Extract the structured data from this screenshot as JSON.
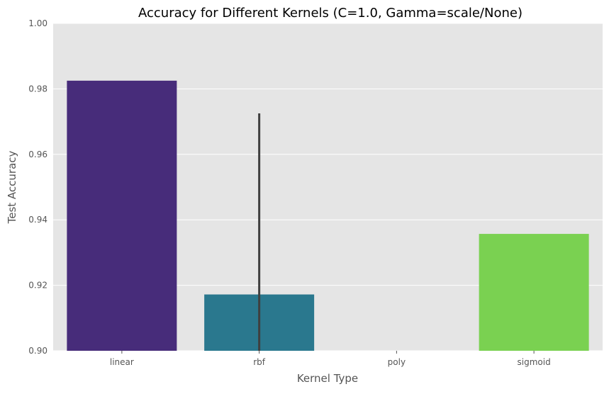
{
  "chart_data": {
    "type": "bar",
    "title": "Accuracy for Different Kernels (C=1.0, Gamma=scale/None)",
    "xlabel": "Kernel Type",
    "ylabel": "Test Accuracy",
    "categories": [
      "linear",
      "rbf",
      "poly",
      "sigmoid"
    ],
    "values": [
      0.9825,
      0.9172,
      null,
      0.9357
    ],
    "error_bars": [
      null,
      [
        0.9,
        0.9725
      ],
      null,
      null
    ],
    "ylim": [
      0.9,
      1.0
    ],
    "yticks": [
      "0.90",
      "0.92",
      "0.94",
      "0.96",
      "0.98",
      "1.00"
    ],
    "grid": true,
    "legend": "none",
    "colors": {
      "linear": "#472c7a",
      "rbf": "#2a788e",
      "poly": "#22a884",
      "sigmoid": "#7ad151",
      "background": "#e5e5e5",
      "grid": "#ffffff",
      "errorbar": "#3f3f3f"
    }
  }
}
